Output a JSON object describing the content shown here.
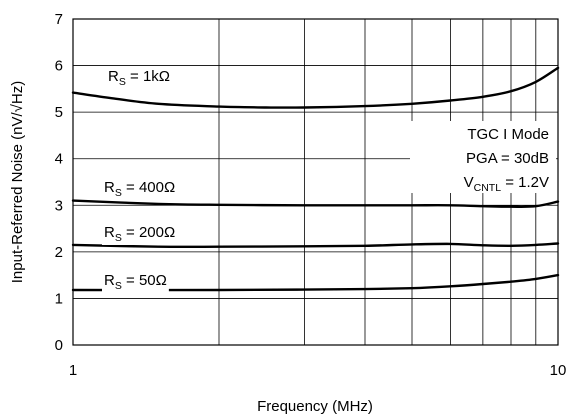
{
  "chart_data": {
    "type": "line",
    "xscale": "log",
    "xlim": [
      1,
      10
    ],
    "ylim": [
      0,
      7
    ],
    "grid": true,
    "xlabel": "Frequency (MHz)",
    "ylabel": "Input-Referred Noise (nV/√Hz)",
    "xticks": [
      1,
      10
    ],
    "xtick_labels": [
      "1",
      "10"
    ],
    "yticks": [
      0,
      1,
      2,
      3,
      4,
      5,
      6,
      7
    ],
    "ytick_labels": [
      "0",
      "1",
      "2",
      "3",
      "4",
      "5",
      "6",
      "7"
    ],
    "series": [
      {
        "name": "R_S = 1kΩ",
        "label_main": "R",
        "label_sub": "S",
        "label_rest": " = 1kΩ",
        "x": [
          1,
          1.2,
          1.5,
          2,
          2.5,
          3,
          4,
          5,
          6,
          7,
          8,
          9,
          10
        ],
        "y": [
          5.42,
          5.3,
          5.18,
          5.12,
          5.1,
          5.1,
          5.13,
          5.18,
          5.25,
          5.33,
          5.45,
          5.65,
          5.95
        ]
      },
      {
        "name": "R_S = 400Ω",
        "label_main": "R",
        "label_sub": "S",
        "label_rest": " = 400Ω",
        "x": [
          1,
          1.5,
          2,
          3,
          4,
          5,
          6,
          7,
          8,
          9,
          10
        ],
        "y": [
          3.1,
          3.03,
          3.01,
          3.0,
          3.0,
          3.0,
          3.0,
          2.98,
          2.97,
          2.98,
          3.08
        ]
      },
      {
        "name": "R_S = 200Ω",
        "label_main": "R",
        "label_sub": "S",
        "label_rest": " = 200Ω",
        "x": [
          1,
          1.5,
          2,
          3,
          4,
          5,
          6,
          7,
          8,
          9,
          10
        ],
        "y": [
          2.15,
          2.11,
          2.11,
          2.12,
          2.13,
          2.16,
          2.17,
          2.14,
          2.13,
          2.15,
          2.18
        ]
      },
      {
        "name": "R_S = 50Ω",
        "label_main": "R",
        "label_sub": "S",
        "label_rest": " = 50Ω",
        "x": [
          1,
          2,
          3,
          4,
          5,
          6,
          7,
          8,
          9,
          10
        ],
        "y": [
          1.18,
          1.18,
          1.19,
          1.2,
          1.22,
          1.26,
          1.31,
          1.36,
          1.42,
          1.5
        ]
      }
    ],
    "annotation": {
      "line1": "TGC I Mode",
      "line2": "PGA = 30dB",
      "line3_main": "V",
      "line3_sub": "CNTL",
      "line3_rest": " = 1.2V"
    },
    "colors": {
      "line": "#000000",
      "grid": "#000000",
      "background": "#ffffff"
    }
  }
}
